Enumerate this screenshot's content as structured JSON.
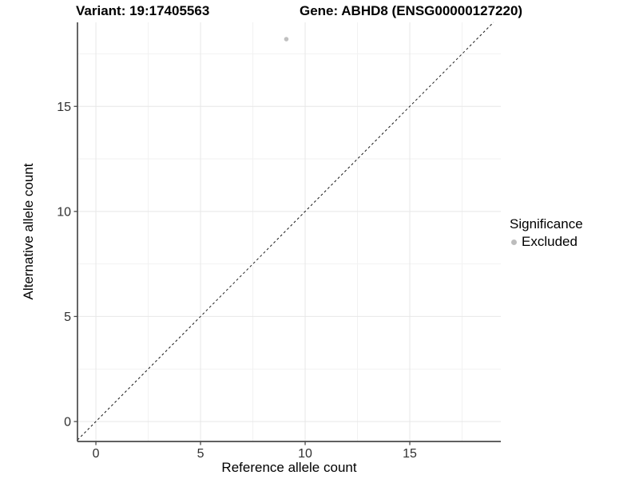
{
  "chart_data": {
    "type": "scatter",
    "title_left": "Variant: 19:17405563",
    "title_right": "Gene: ABHD8 (ENSG00000127220)",
    "xlabel": "Reference allele count",
    "ylabel": "Alternative allele count",
    "xlim": [
      -0.88,
      19.35
    ],
    "ylim": [
      -0.95,
      19.0
    ],
    "xticks": [
      0,
      5,
      10,
      15
    ],
    "yticks": [
      0,
      5,
      10,
      15
    ],
    "xticks_minor": [
      2.5,
      7.5,
      12.5,
      17.5
    ],
    "yticks_minor": [
      2.5,
      7.5,
      12.5,
      17.5
    ],
    "grid": "major+minor",
    "points": [
      {
        "x": 9.1,
        "y": 18.2,
        "series": "Excluded"
      }
    ],
    "reference_line": {
      "slope": 1,
      "intercept": 0,
      "style": "dashed"
    },
    "legend": {
      "title": "Significance",
      "position": "right",
      "items": [
        {
          "label": "Excluded",
          "color": "#bdbdbd"
        }
      ]
    },
    "colors": {
      "point": "#c0c0c0",
      "legend_dot": "#bdbdbd",
      "grid_major": "#e7e7e7",
      "grid_minor": "#f2f2f2",
      "axis_line": "#4a4a4a",
      "tick_text": "#303030",
      "dashed_line": "#1a1a1a"
    }
  }
}
